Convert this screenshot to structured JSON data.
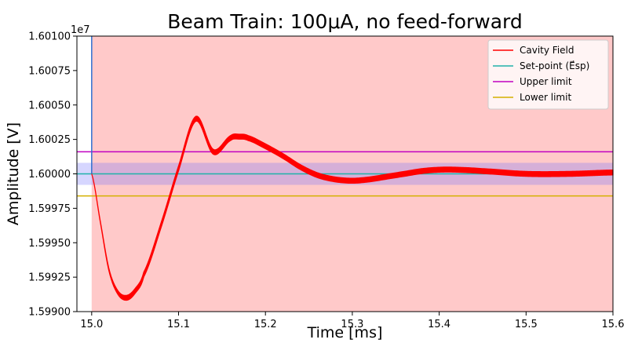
{
  "chart_data": {
    "type": "line",
    "title": "Beam Train: 100μA, no feed-forward",
    "xlabel": "Time [ms]",
    "ylabel": "Amplitude [V]",
    "y_offset_label": "1e7",
    "xlim": [
      14.983,
      15.6
    ],
    "ylim": [
      1.599,
      1.601
    ],
    "x_ticks": [
      15.0,
      15.1,
      15.2,
      15.3,
      15.4,
      15.5,
      15.6
    ],
    "x_tick_labels": [
      "15.0",
      "15.1",
      "15.2",
      "15.3",
      "15.4",
      "15.5",
      "15.6"
    ],
    "y_ticks": [
      1.599,
      1.59925,
      1.5995,
      1.59975,
      1.6,
      1.60025,
      1.6005,
      1.60075,
      1.601
    ],
    "y_tick_labels": [
      "1.59900",
      "1.59925",
      "1.59950",
      "1.59975",
      "1.60000",
      "1.60025",
      "1.60050",
      "1.60075",
      "1.60100"
    ],
    "regions": [
      {
        "name": "beam-on-region",
        "x_start": 15.0,
        "x_end": 15.6,
        "color": "#ffc9c9"
      },
      {
        "name": "tolerance-band",
        "y_min": 1.59992,
        "y_max": 1.60008,
        "color": "#6a6aff",
        "opacity": 0.28
      }
    ],
    "series": [
      {
        "name": "Cavity Field",
        "color": "#ff0000",
        "x": [
          15.0,
          15.01,
          15.02,
          15.03,
          15.04,
          15.05,
          15.06,
          15.08,
          15.1,
          15.12,
          15.14,
          15.16,
          15.17,
          15.18,
          15.2,
          15.22,
          15.24,
          15.26,
          15.28,
          15.3,
          15.32,
          15.34,
          15.36,
          15.38,
          15.4,
          15.42,
          15.45,
          15.5,
          15.55,
          15.6
        ],
        "values": [
          1.6,
          1.59965,
          1.5993,
          1.59914,
          1.5991,
          1.59915,
          1.59927,
          1.59963,
          1.60004,
          1.6004,
          1.60016,
          1.60026,
          1.60027,
          1.60026,
          1.6002,
          1.60013,
          1.60005,
          1.59999,
          1.59996,
          1.59995,
          1.59996,
          1.59998,
          1.6,
          1.60002,
          1.60003,
          1.60003,
          1.60002,
          1.6,
          1.6,
          1.60001
        ],
        "envelope_halfwidth_start": 0.0,
        "envelope_halfwidth_end": 1.8e-05
      },
      {
        "name": "Set-point (E⃗sp)",
        "color": "#20b2aa",
        "constant": 1.6
      },
      {
        "name": "Upper limit",
        "color": "#c000c0",
        "constant": 1.60016
      },
      {
        "name": "Lower limit",
        "color": "#d4b000",
        "constant": 1.59984
      },
      {
        "name": "Beam-on marker",
        "color": "#3070d0",
        "x_constant": 15.0
      }
    ],
    "legend": {
      "position": "top-right",
      "entries": [
        {
          "label": "Cavity Field",
          "color": "#ff0000"
        },
        {
          "label": "Set-point (E⃗sp)",
          "color": "#20b2aa"
        },
        {
          "label": "Upper limit",
          "color": "#c000c0"
        },
        {
          "label": "Lower limit",
          "color": "#d4b000"
        }
      ]
    }
  }
}
